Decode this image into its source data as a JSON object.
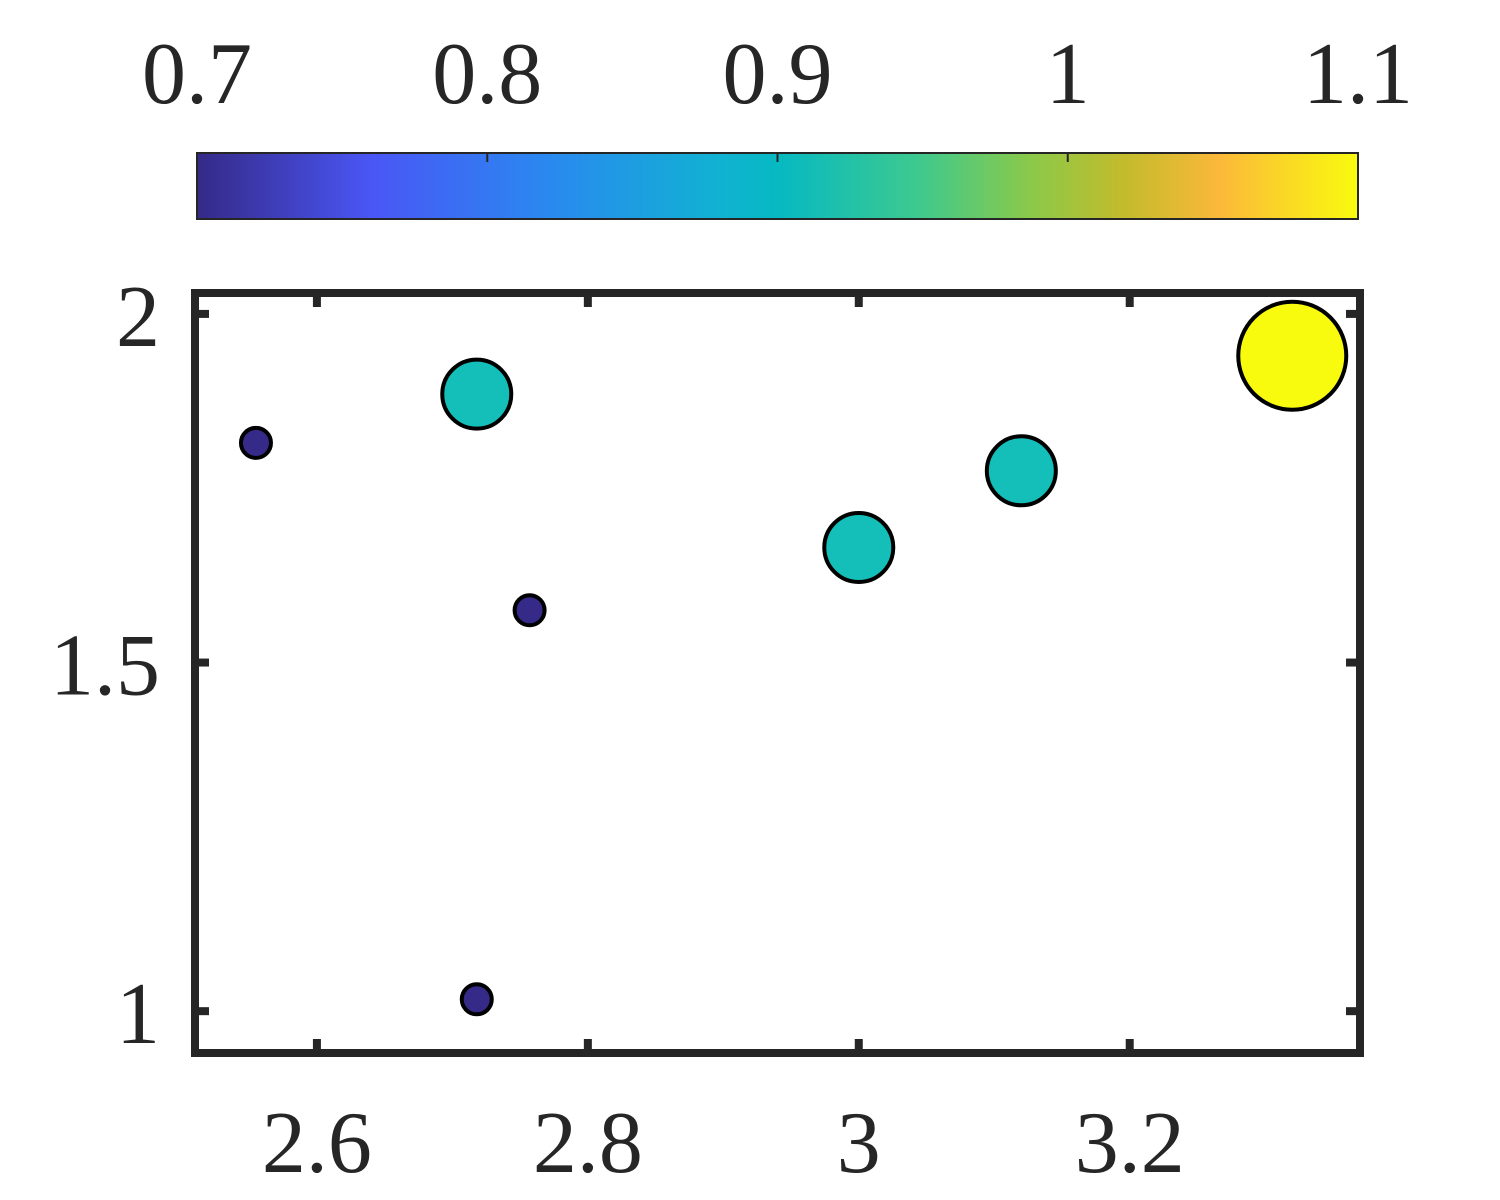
{
  "chart_data": {
    "type": "scatter",
    "title": "",
    "xlabel": "",
    "ylabel": "",
    "xlim": [
      2.51,
      3.37
    ],
    "ylim": [
      0.94,
      2.03
    ],
    "grid": false,
    "x_ticks": [
      2.6,
      2.8,
      3.0,
      3.2
    ],
    "x_tick_labels": [
      "2.6",
      "2.8",
      "3",
      "3.2"
    ],
    "y_ticks": [
      1.0,
      1.5,
      2.0
    ],
    "y_tick_labels": [
      "1",
      "1.5",
      "2"
    ],
    "colorbar": {
      "location": "top",
      "colormap": "parula",
      "limits": [
        0.7,
        1.1
      ],
      "ticks": [
        0.7,
        0.8,
        0.9,
        1.0,
        1.1
      ],
      "tick_labels": [
        "0.7",
        "0.8",
        "0.9",
        "1",
        "1.1"
      ]
    },
    "points": [
      {
        "x": 2.555,
        "y": 1.815,
        "color_value": 0.7,
        "size": 0.7
      },
      {
        "x": 2.718,
        "y": 1.017,
        "color_value": 0.7,
        "size": 0.7
      },
      {
        "x": 2.757,
        "y": 1.575,
        "color_value": 0.7,
        "size": 0.7
      },
      {
        "x": 2.718,
        "y": 1.885,
        "color_value": 0.9,
        "size": 0.9
      },
      {
        "x": 3.0,
        "y": 1.665,
        "color_value": 0.9,
        "size": 0.9
      },
      {
        "x": 3.12,
        "y": 1.775,
        "color_value": 0.9,
        "size": 0.9
      },
      {
        "x": 3.32,
        "y": 1.94,
        "color_value": 1.1,
        "size": 1.1
      }
    ]
  }
}
